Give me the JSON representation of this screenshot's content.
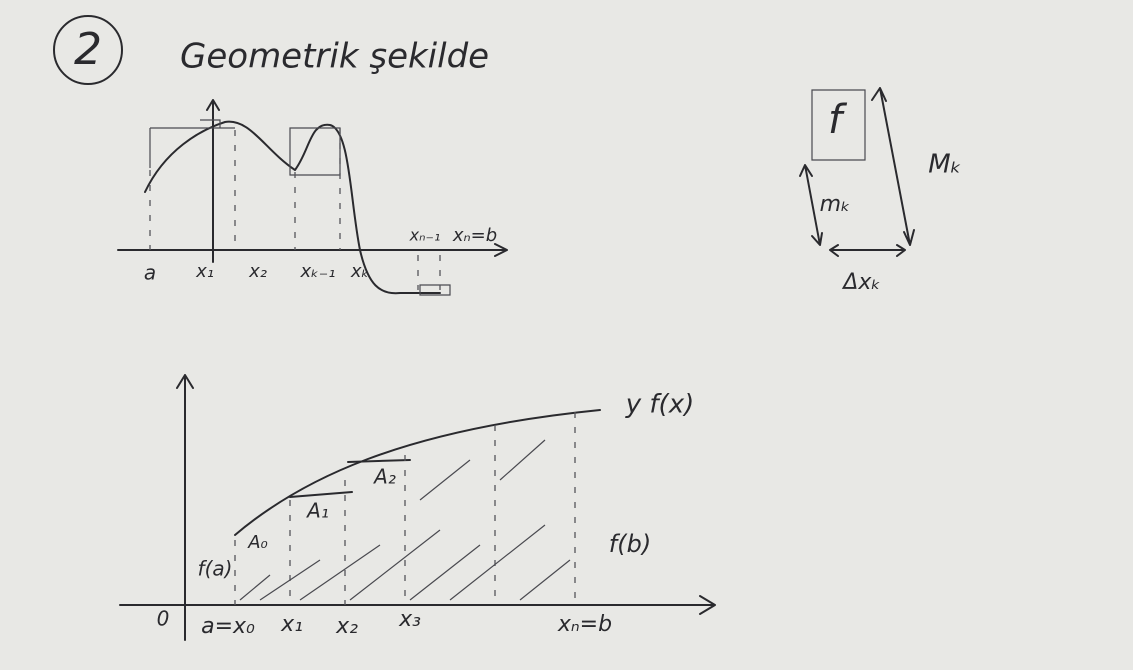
{
  "number": "2",
  "title": "Geometrik şekilde",
  "top_diagram": {
    "labels": [
      "a",
      "x₁",
      "x₂",
      "xₖ₋₁",
      "xₖ",
      "xₙ₋₁",
      "xₙ=b"
    ]
  },
  "strip": {
    "function": "f",
    "upper": "Mₖ",
    "lower": "mₖ",
    "width": "Δxₖ"
  },
  "bottom_diagram": {
    "curve": "y f(x)",
    "areas": [
      "A₀",
      "A₁",
      "A₂"
    ],
    "left_height": "f(a)",
    "right_height": "f(b)",
    "labels": [
      "0",
      "a=x₀",
      "x₁",
      "x₂",
      "x₃",
      "xₙ=b"
    ]
  }
}
